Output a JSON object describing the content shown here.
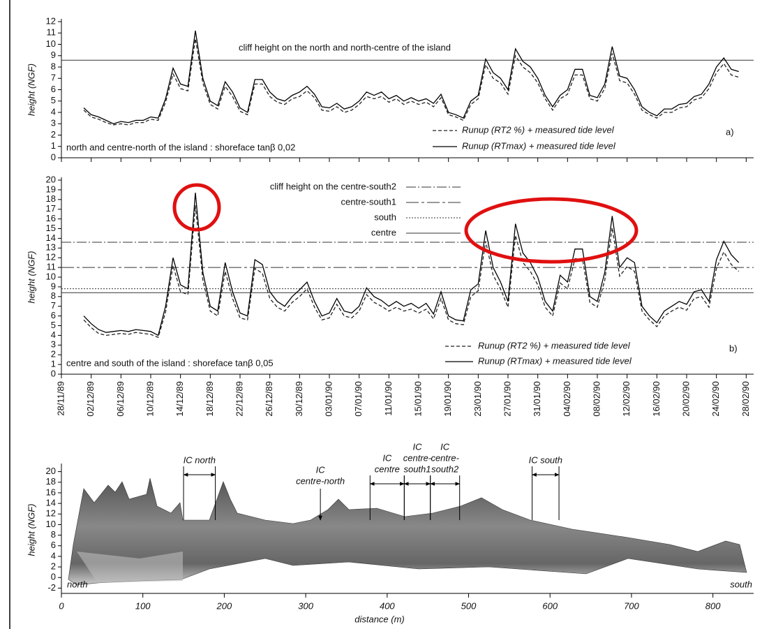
{
  "chart_data": [
    {
      "type": "line",
      "ylabel": "height (NGF)",
      "xlim": [
        "28/11/89",
        "01/03/90"
      ],
      "ylim": [
        0,
        12
      ],
      "yticks": [
        0,
        1,
        2,
        3,
        4,
        5,
        6,
        7,
        8,
        9,
        10,
        11,
        12
      ],
      "hlines": [
        {
          "label": "cliff height on the north and north-centre of the island",
          "value": 8.6
        }
      ],
      "annotation": "north and centre-north of the island : shoreface tanβ 0,02",
      "panel_label": "a)",
      "x": [
        "01/12/89",
        "02/12/89",
        "03/12/89",
        "04/12/89",
        "05/12/89",
        "06/12/89",
        "07/12/89",
        "08/12/89",
        "09/12/89",
        "10/12/89",
        "11/12/89",
        "12/12/89",
        "13/12/89",
        "14/12/89",
        "15/12/89",
        "16/12/89",
        "17/12/89",
        "18/12/89",
        "19/12/89",
        "20/12/89",
        "21/12/89",
        "22/12/89",
        "23/12/89",
        "24/12/89",
        "25/12/89",
        "26/12/89",
        "27/12/89",
        "28/12/89",
        "29/12/89",
        "30/12/89",
        "31/12/89",
        "01/01/90",
        "02/01/90",
        "03/01/90",
        "04/01/90",
        "05/01/90",
        "06/01/90",
        "07/01/90",
        "08/01/90",
        "09/01/90",
        "10/01/90",
        "11/01/90",
        "12/01/90",
        "13/01/90",
        "14/01/90",
        "15/01/90",
        "16/01/90",
        "17/01/90",
        "18/01/90",
        "19/01/90",
        "20/01/90",
        "21/01/90",
        "22/01/90",
        "23/01/90",
        "24/01/90",
        "25/01/90",
        "26/01/90",
        "27/01/90",
        "28/01/90",
        "29/01/90",
        "30/01/90",
        "31/01/90",
        "01/02/90",
        "02/02/90",
        "03/02/90",
        "04/02/90",
        "05/02/90",
        "06/02/90",
        "07/02/90",
        "08/02/90",
        "09/02/90",
        "10/02/90",
        "11/02/90",
        "12/02/90",
        "13/02/90",
        "14/02/90",
        "15/02/90",
        "16/02/90",
        "17/02/90",
        "18/02/90",
        "19/02/90",
        "20/02/90",
        "21/02/90",
        "22/02/90",
        "23/02/90",
        "24/02/90",
        "25/02/90",
        "26/02/90",
        "27/02/90"
      ],
      "series": [
        {
          "name": "Runup (RT2 %) + measured tide level",
          "color": "#222",
          "dash": "5 3",
          "values": [
            4.2,
            3.6,
            3.4,
            3.1,
            2.9,
            3.0,
            2.9,
            3.1,
            3.1,
            3.4,
            3.3,
            4.9,
            7.4,
            6.1,
            5.9,
            10.5,
            6.6,
            4.7,
            4.3,
            6.3,
            5.4,
            4.1,
            3.8,
            6.5,
            6.5,
            5.4,
            4.9,
            4.7,
            5.2,
            5.4,
            5.9,
            5.3,
            4.2,
            4.1,
            4.5,
            4.0,
            4.2,
            4.7,
            5.4,
            5.2,
            5.4,
            4.9,
            5.2,
            4.7,
            5.0,
            4.7,
            4.9,
            4.5,
            5.3,
            3.8,
            3.6,
            3.3,
            4.7,
            5.2,
            8.2,
            7.0,
            6.6,
            5.6,
            9.0,
            8.0,
            7.5,
            6.6,
            5.2,
            4.2,
            5.2,
            5.6,
            7.3,
            7.3,
            5.2,
            5.0,
            6.1,
            9.2,
            6.8,
            6.6,
            5.6,
            4.2,
            3.8,
            3.5,
            4.0,
            4.0,
            4.4,
            4.5,
            5.1,
            5.3,
            6.1,
            7.5,
            8.3,
            7.3,
            7.1
          ]
        },
        {
          "name": "Runup (RTmax) + measured tide level",
          "color": "#000",
          "values": [
            4.4,
            3.8,
            3.6,
            3.3,
            3.0,
            3.2,
            3.1,
            3.3,
            3.3,
            3.6,
            3.5,
            5.2,
            7.9,
            6.5,
            6.3,
            11.2,
            7.0,
            5.0,
            4.6,
            6.7,
            5.8,
            4.4,
            4.0,
            6.9,
            6.9,
            5.8,
            5.2,
            5.0,
            5.5,
            5.8,
            6.3,
            5.6,
            4.5,
            4.4,
            4.8,
            4.3,
            4.5,
            5.0,
            5.8,
            5.5,
            5.8,
            5.2,
            5.5,
            5.0,
            5.3,
            5.0,
            5.2,
            4.8,
            5.6,
            4.0,
            3.8,
            3.5,
            5.0,
            5.5,
            8.7,
            7.5,
            7.0,
            6.0,
            9.6,
            8.5,
            8.0,
            7.0,
            5.5,
            4.5,
            5.5,
            6.0,
            7.8,
            7.8,
            5.5,
            5.3,
            6.5,
            9.8,
            7.2,
            7.0,
            6.0,
            4.5,
            4.0,
            3.7,
            4.3,
            4.3,
            4.7,
            4.8,
            5.4,
            5.6,
            6.5,
            8.0,
            8.8,
            7.8,
            7.6
          ]
        }
      ]
    },
    {
      "type": "line",
      "ylabel": "height (NGF)",
      "xlim": [
        "28/11/89",
        "01/03/90"
      ],
      "ylim": [
        0,
        20
      ],
      "yticks": [
        0,
        1,
        2,
        3,
        4,
        5,
        6,
        7,
        8,
        9,
        10,
        11,
        12,
        13,
        14,
        15,
        16,
        17,
        18,
        19,
        20
      ],
      "xticks": [
        "28/11/89",
        "02/12/89",
        "06/12/89",
        "10/12/89",
        "14/12/89",
        "18/12/89",
        "22/12/89",
        "26/12/89",
        "30/12/89",
        "03/01/90",
        "07/01/90",
        "11/01/90",
        "15/01/90",
        "19/01/90",
        "23/01/90",
        "27/01/90",
        "31/01/90",
        "04/02/90",
        "08/02/90",
        "12/02/90",
        "16/02/90",
        "20/02/90",
        "24/02/90",
        "28/02/90"
      ],
      "hlines": [
        {
          "label": "cliff height on the centre-south2",
          "value": 13.6,
          "dash": "14 3 2 3"
        },
        {
          "label": "centre-south1",
          "value": 11.0,
          "dash": "18 4 4 4"
        },
        {
          "label": "south",
          "value": 8.8,
          "dash": "2 2"
        },
        {
          "label": "centre",
          "value": 8.4
        }
      ],
      "annotation": "centre and south of the island : shoreface tanβ 0,05",
      "panel_label": "b)",
      "x": [
        "01/12/89",
        "02/12/89",
        "03/12/89",
        "04/12/89",
        "05/12/89",
        "06/12/89",
        "07/12/89",
        "08/12/89",
        "09/12/89",
        "10/12/89",
        "11/12/89",
        "12/12/89",
        "13/12/89",
        "14/12/89",
        "15/12/89",
        "16/12/89",
        "17/12/89",
        "18/12/89",
        "19/12/89",
        "20/12/89",
        "21/12/89",
        "22/12/89",
        "23/12/89",
        "24/12/89",
        "25/12/89",
        "26/12/89",
        "27/12/89",
        "28/12/89",
        "29/12/89",
        "30/12/89",
        "31/12/89",
        "01/01/90",
        "02/01/90",
        "03/01/90",
        "04/01/90",
        "05/01/90",
        "06/01/90",
        "07/01/90",
        "08/01/90",
        "09/01/90",
        "10/01/90",
        "11/01/90",
        "12/01/90",
        "13/01/90",
        "14/01/90",
        "15/01/90",
        "16/01/90",
        "17/01/90",
        "18/01/90",
        "19/01/90",
        "20/01/90",
        "21/01/90",
        "22/01/90",
        "23/01/90",
        "24/01/90",
        "25/01/90",
        "26/01/90",
        "27/01/90",
        "28/01/90",
        "29/01/90",
        "30/01/90",
        "31/01/90",
        "01/02/90",
        "02/02/90",
        "03/02/90",
        "04/02/90",
        "05/02/90",
        "06/02/90",
        "07/02/90",
        "08/02/90",
        "09/02/90",
        "10/02/90",
        "11/02/90",
        "12/02/90",
        "13/02/90",
        "14/02/90",
        "15/02/90",
        "16/02/90",
        "17/02/90",
        "18/02/90",
        "19/02/90",
        "20/02/90",
        "21/02/90",
        "22/02/90",
        "23/02/90",
        "24/02/90",
        "25/02/90",
        "26/02/90",
        "27/02/90"
      ],
      "series": [
        {
          "name": "Runup (RT2 %) + measured tide level",
          "color": "#222",
          "dash": "5 3",
          "values": [
            5.6,
            4.8,
            4.2,
            4.0,
            4.1,
            4.2,
            4.1,
            4.3,
            4.2,
            4.1,
            3.8,
            6.4,
            11.2,
            8.5,
            8.2,
            17.4,
            9.7,
            6.5,
            6.0,
            10.6,
            7.8,
            5.8,
            5.6,
            10.9,
            10.4,
            7.8,
            6.9,
            6.5,
            7.4,
            8.0,
            8.8,
            6.9,
            5.6,
            5.8,
            7.2,
            6.0,
            5.8,
            6.5,
            8.2,
            7.4,
            7.0,
            6.5,
            6.9,
            6.5,
            6.7,
            6.3,
            6.7,
            5.7,
            7.8,
            5.6,
            5.2,
            5.1,
            8.0,
            8.6,
            13.7,
            10.2,
            8.8,
            6.9,
            14.3,
            11.5,
            10.6,
            9.2,
            6.9,
            6.0,
            9.4,
            8.8,
            11.9,
            11.9,
            7.4,
            6.9,
            9.7,
            15.1,
            10.1,
            11.1,
            10.6,
            6.5,
            5.6,
            4.9,
            6.0,
            6.5,
            6.9,
            6.6,
            7.8,
            8.0,
            6.9,
            10.9,
            12.6,
            11.3,
            10.6
          ]
        },
        {
          "name": "Runup (RTmax) + measured tide level",
          "color": "#000",
          "values": [
            6.0,
            5.2,
            4.6,
            4.3,
            4.4,
            4.5,
            4.4,
            4.6,
            4.5,
            4.4,
            4.0,
            7.0,
            12.0,
            9.2,
            8.8,
            18.7,
            10.5,
            7.0,
            6.5,
            11.5,
            8.5,
            6.3,
            6.0,
            11.8,
            11.3,
            8.5,
            7.5,
            7.0,
            8.0,
            8.7,
            9.5,
            7.5,
            6.0,
            6.3,
            7.8,
            6.5,
            6.3,
            7.0,
            8.9,
            8.0,
            7.6,
            7.0,
            7.5,
            7.0,
            7.3,
            6.8,
            7.3,
            6.2,
            8.5,
            6.0,
            5.6,
            5.5,
            8.7,
            9.3,
            14.8,
            11.0,
            9.5,
            7.5,
            15.5,
            12.5,
            11.5,
            10.0,
            7.5,
            6.5,
            10.2,
            9.5,
            12.9,
            12.9,
            8.0,
            7.5,
            10.5,
            16.3,
            11.0,
            12.0,
            11.5,
            7.0,
            6.0,
            5.3,
            6.5,
            7.0,
            7.5,
            7.2,
            8.5,
            8.7,
            7.5,
            11.8,
            13.7,
            12.3,
            11.5
          ]
        }
      ]
    },
    {
      "type": "profile",
      "xlabel": "distance (m)",
      "ylabel": "height (NGF)",
      "xlim": [
        0,
        850
      ],
      "ylim": [
        -3,
        21
      ],
      "xticks": [
        0,
        100,
        200,
        300,
        400,
        500,
        600,
        700,
        800
      ],
      "yticks": [
        -2,
        0,
        2,
        4,
        6,
        8,
        10,
        12,
        14,
        16,
        18,
        20
      ],
      "left_label": "north",
      "right_label": "south",
      "annotations": [
        {
          "lines": [
            "IC north"
          ],
          "from": 150,
          "to": 189
        },
        {
          "lines": [
            "IC",
            "centre-north"
          ],
          "at": 318
        },
        {
          "lines": [
            "IC",
            "centre"
          ],
          "from": 379,
          "to": 421
        },
        {
          "lines": [
            "IC",
            "centre-",
            "south1"
          ],
          "from": 421,
          "to": 453
        },
        {
          "lines": [
            "IC",
            "centre-",
            "south2"
          ],
          "from": 453,
          "to": 489
        },
        {
          "lines": [
            "IC south"
          ],
          "from": 578,
          "to": 611
        }
      ]
    }
  ]
}
